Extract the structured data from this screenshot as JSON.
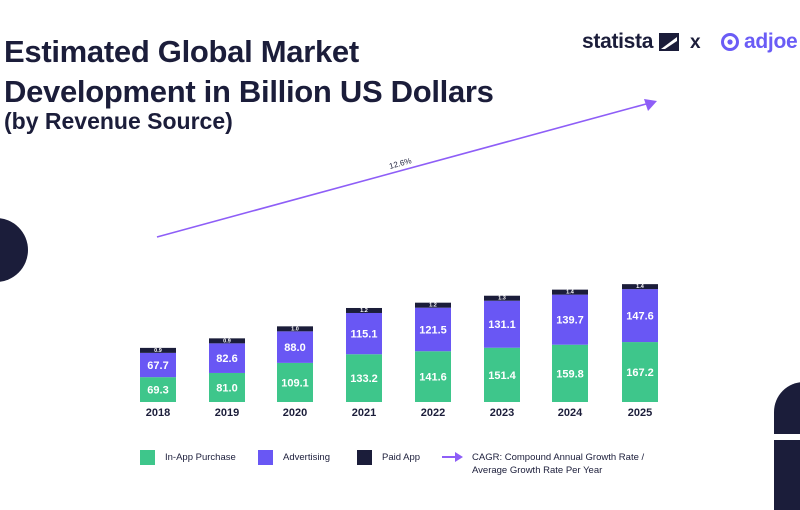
{
  "header": {
    "title_line1": "Estimated Global Market",
    "title_line2": "Development in Billion US Dollars",
    "subtitle": "(by Revenue Source)",
    "brand_left": "statista",
    "brand_separator": "x",
    "brand_right": "adjoe"
  },
  "colors": {
    "in_app": "#3ec68b",
    "advertising": "#6957f4",
    "paid_app": "#1b1d3a",
    "arrow": "#8e5ef7",
    "text_dark": "#1b1d3a"
  },
  "chart_data": {
    "type": "bar",
    "stacked": true,
    "title": "Estimated Global Market Development in Billion US Dollars",
    "subtitle": "(by Revenue Source)",
    "categories": [
      "2018",
      "2019",
      "2020",
      "2021",
      "2022",
      "2023",
      "2024",
      "2025"
    ],
    "series": [
      {
        "name": "In-App Purchase",
        "values": [
          69.3,
          81.0,
          109.1,
          133.2,
          141.6,
          151.4,
          159.8,
          167.2
        ]
      },
      {
        "name": "Advertising",
        "values": [
          67.7,
          82.6,
          88.0,
          115.1,
          121.5,
          131.1,
          139.7,
          147.6
        ]
      },
      {
        "name": "Paid App",
        "values": [
          0.9,
          0.9,
          1.0,
          1.2,
          1.2,
          1.3,
          1.4,
          1.4
        ]
      }
    ],
    "value_labels": {
      "In-App Purchase": [
        "69.3",
        "81.0",
        "109.1",
        "133.2",
        "141.6",
        "151.4",
        "159.8",
        "167.2"
      ],
      "Advertising": [
        "67.7",
        "82.6",
        "88.0",
        "115.1",
        "121.5",
        "131.1",
        "139.7",
        "147.6"
      ],
      "Paid App": [
        "0.9",
        "0.9",
        "1.0",
        "1.2",
        "1.2",
        "1.3",
        "1.4",
        "1.4"
      ]
    },
    "annotation": {
      "text": "12.6%",
      "meaning": "CAGR 2018–2025"
    },
    "xlabel": "",
    "ylabel": "",
    "ylim": [
      0,
      320
    ],
    "grid": false,
    "legend_position": "bottom"
  },
  "legend": {
    "in_app": "In-App Purchase",
    "advertising": "Advertising",
    "paid_app": "Paid App",
    "cagr_line1": "CAGR: Compound Annual Growth Rate /",
    "cagr_line2": "Average Growth Rate Per Year"
  }
}
